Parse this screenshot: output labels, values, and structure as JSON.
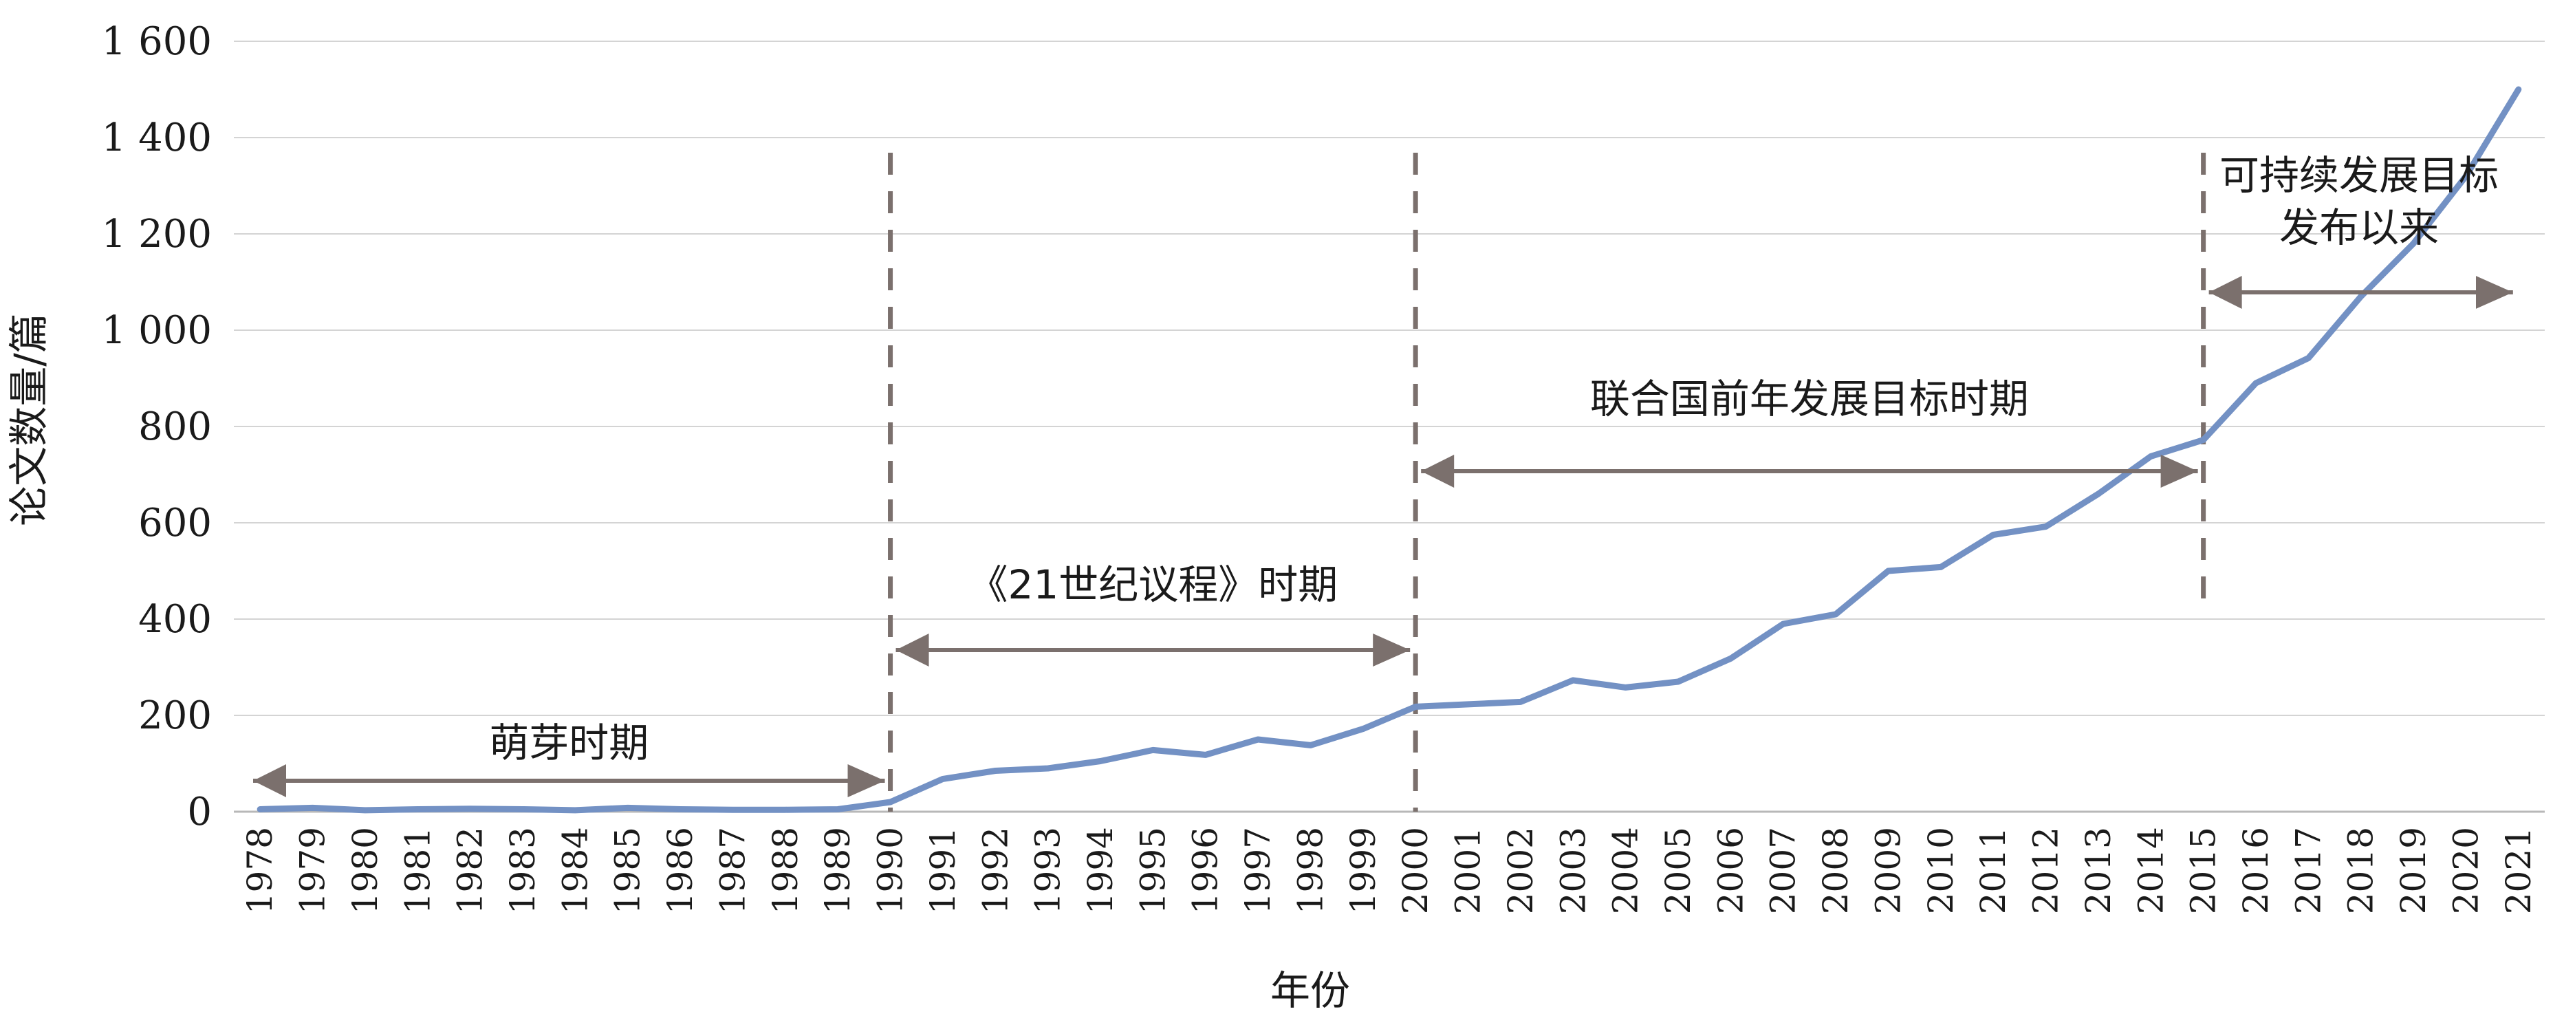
{
  "chart_data": {
    "type": "line",
    "xlabel": "年份",
    "ylabel": "论文数量/篇",
    "ylim": [
      0,
      1600
    ],
    "grid": "horizontal",
    "y_ticks": [
      {
        "value": 0,
        "label": "0"
      },
      {
        "value": 200,
        "label": "200"
      },
      {
        "value": 400,
        "label": "400"
      },
      {
        "value": 600,
        "label": "600"
      },
      {
        "value": 800,
        "label": "800"
      },
      {
        "value": 1000,
        "label": "1 000"
      },
      {
        "value": 1200,
        "label": "1 200"
      },
      {
        "value": 1400,
        "label": "1 400"
      },
      {
        "value": 1600,
        "label": "1 600"
      }
    ],
    "x": [
      "1978",
      "1979",
      "1980",
      "1981",
      "1982",
      "1983",
      "1984",
      "1985",
      "1986",
      "1987",
      "1988",
      "1989",
      "1990",
      "1991",
      "1992",
      "1993",
      "1994",
      "1995",
      "1996",
      "1997",
      "1998",
      "1999",
      "2000",
      "2001",
      "2002",
      "2003",
      "2004",
      "2005",
      "2006",
      "2007",
      "2008",
      "2009",
      "2010",
      "2011",
      "2012",
      "2013",
      "2014",
      "2015",
      "2016",
      "2017",
      "2018",
      "2019",
      "2020",
      "2021"
    ],
    "series": [
      {
        "color": "#7391c4",
        "values": [
          5,
          8,
          3,
          5,
          6,
          5,
          3,
          8,
          5,
          4,
          4,
          5,
          20,
          68,
          85,
          90,
          105,
          128,
          118,
          150,
          138,
          172,
          218,
          223,
          228,
          273,
          258,
          270,
          318,
          390,
          410,
          500,
          508,
          575,
          592,
          660,
          738,
          772,
          890,
          942,
          1070,
          1180,
          1320,
          1500
        ]
      }
    ],
    "periods": [
      {
        "label": "萌芽时期",
        "start": 1977,
        "end": 1990
      },
      {
        "label": "《21世纪议程》时期",
        "start": 1990,
        "end": 2000
      },
      {
        "label": "联合国前年发展目标时期",
        "start": 2000,
        "end": 2015
      },
      {
        "label_lines": [
          "可持续发展目标",
          "发布以来"
        ],
        "start": 2015,
        "end": 2021
      }
    ],
    "dividers": [
      1990,
      2000,
      2015
    ],
    "colors": {
      "line": "#7391c4",
      "annotation": "#7b706d",
      "grid": "#d4d4d4"
    }
  }
}
